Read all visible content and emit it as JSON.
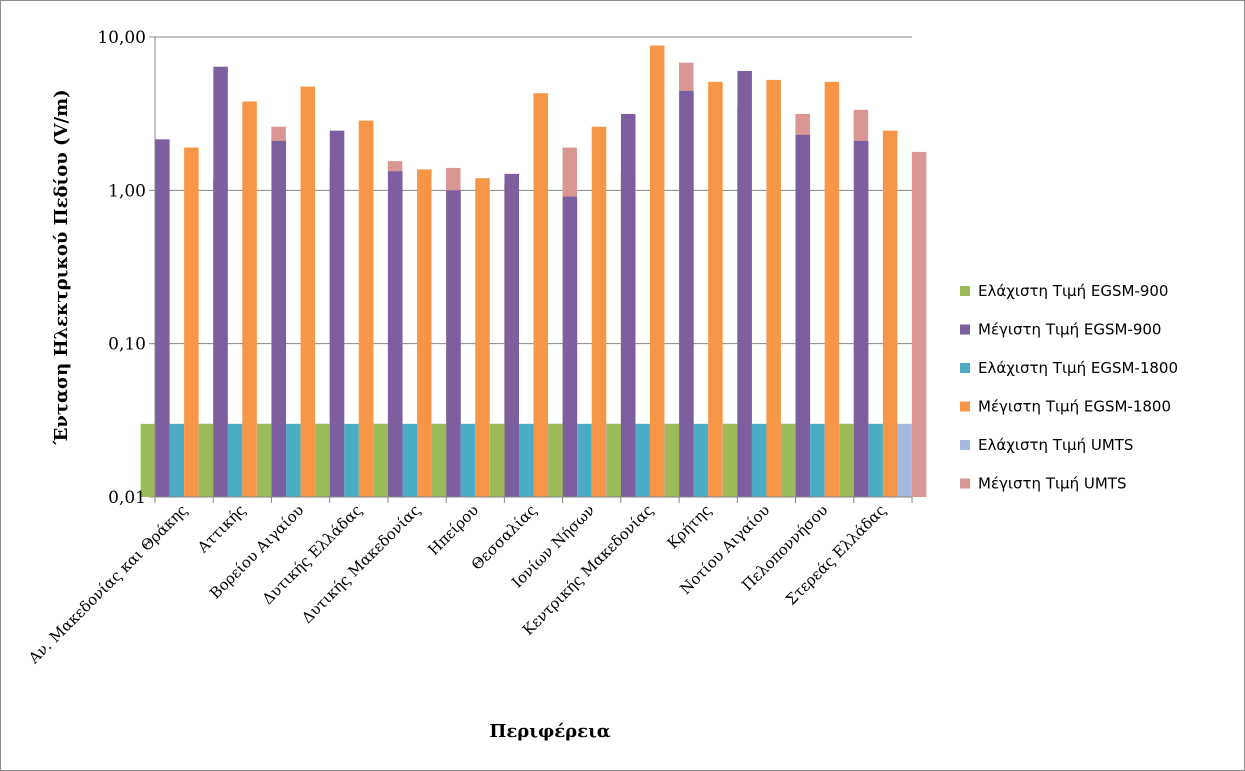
{
  "chart_data": {
    "type": "bar",
    "title": "",
    "xlabel": "Περιφέρεια",
    "ylabel": "Ένταση Ηλεκτρικού Πεδίου (V/m)",
    "yscale": "log",
    "ylim": [
      0.01,
      10
    ],
    "yticks": [
      {
        "value": 0.01,
        "label": "0,01"
      },
      {
        "value": 0.1,
        "label": "0,10"
      },
      {
        "value": 1,
        "label": "1,00"
      },
      {
        "value": 10,
        "label": "10,00"
      }
    ],
    "grid": "horizontal major",
    "legend_position": "right",
    "categories": [
      "Αν. Μακεδονίας και Θράκης",
      "Αττικής",
      "Βορείου Αιγαίου",
      "Δυτικής Ελλάδας",
      "Δυτικής Μακεδονίας",
      "Ηπείρου",
      "Θεσσαλίας",
      "Ιονίων Νήσων",
      "Κεντρικής Μακεδονίας",
      "Κρήτης",
      "Νοτίου Αιγαίου",
      "Πελοποννήσου",
      "Στερεάς Ελλάδας"
    ],
    "series": [
      {
        "name": "Ελάχιστη Τιμή EGSM-900",
        "color": "#9bbb59",
        "values": [
          0.03,
          0.03,
          0.03,
          0.03,
          0.03,
          0.03,
          0.03,
          0.03,
          0.03,
          0.03,
          0.03,
          0.03,
          0.03
        ]
      },
      {
        "name": "Μέγιστη Τιμή EGSM-900",
        "color": "#7d5fa0",
        "values": [
          2.15,
          6.4,
          2.1,
          2.45,
          1.33,
          1.0,
          1.28,
          0.91,
          3.15,
          4.45,
          6.0,
          2.3,
          2.1
        ]
      },
      {
        "name": "Ελάχιστη Τιμή EGSM-1800",
        "color": "#4bacc6",
        "values": [
          0.03,
          0.03,
          0.03,
          0.03,
          0.03,
          0.03,
          0.03,
          0.03,
          0.03,
          0.03,
          0.03,
          0.03,
          0.03
        ]
      },
      {
        "name": "Μέγιστη Τιμή EGSM-1800",
        "color": "#f79646",
        "values": [
          1.9,
          3.8,
          4.75,
          2.85,
          1.37,
          1.2,
          4.3,
          2.6,
          8.8,
          5.1,
          5.25,
          5.1,
          2.45
        ]
      },
      {
        "name": "Ελάχιστη Τιμή UMTS",
        "color": "#a6b9e0",
        "values": [
          0.03,
          0.03,
          0.03,
          0.03,
          0.03,
          0.03,
          0.03,
          0.03,
          0.03,
          0.03,
          0.03,
          0.03,
          0.03
        ]
      },
      {
        "name": "Μέγιστη Τιμή UMTS",
        "color": "#da9694",
        "values": [
          1.2,
          2.6,
          1.55,
          1.55,
          1.4,
          1.1,
          1.9,
          1.28,
          6.8,
          3.55,
          3.15,
          3.35,
          1.78
        ]
      }
    ]
  }
}
